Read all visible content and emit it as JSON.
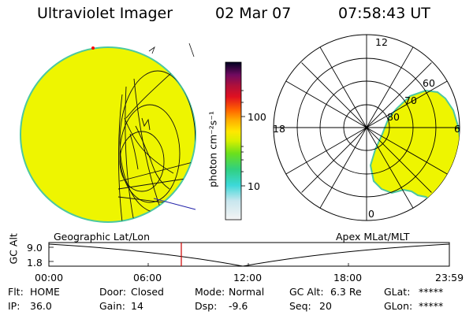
{
  "header": {
    "instrument": "Ultraviolet Imager",
    "date": "02 Mar 07",
    "time": "07:58:43 UT"
  },
  "colorbar": {
    "unit_label": "photon cm⁻²s⁻¹",
    "tick_100": "100",
    "tick_10": "10"
  },
  "polar_plot": {
    "mlt_labels": [
      "12",
      "18",
      "6",
      "0"
    ],
    "lat_labels": [
      "60",
      "70",
      "80"
    ]
  },
  "plot_labels": {
    "left": "Geographic Lat/Lon",
    "right": "Apex MLat/MLT"
  },
  "altitude_chart": {
    "ylabel": "GC Alt",
    "y_ticks": [
      "9.0",
      "1.8"
    ],
    "x_ticks": [
      "00:00",
      "06:00",
      "12:00",
      "18:00",
      "23:59"
    ],
    "current_time_marker": "07:58:43"
  },
  "status": {
    "flt_label": "Flt:",
    "flt_value": "HOME",
    "ip_label": "IP:",
    "ip_value": "36.0",
    "door_label": "Door:",
    "door_value": "Closed",
    "gain_label": "Gain:",
    "gain_value": "14",
    "mode_label": "Mode:",
    "mode_value": "Normal",
    "dsp_label": "Dsp:",
    "dsp_value": "-9.6",
    "gcalt_label": "GC Alt:",
    "gcalt_value": "6.3 Re",
    "seq_label": "Seq:",
    "seq_value": "20",
    "glat_label": "GLat:",
    "glat_value": "*****",
    "glon_label": "GLon:",
    "glon_value": "*****"
  },
  "colors": {
    "image_fill": "#eef500",
    "image_edge": "#4cc8a0",
    "marker": "#ff0000",
    "time_marker": "#cc0000",
    "track": "#2222aa"
  }
}
